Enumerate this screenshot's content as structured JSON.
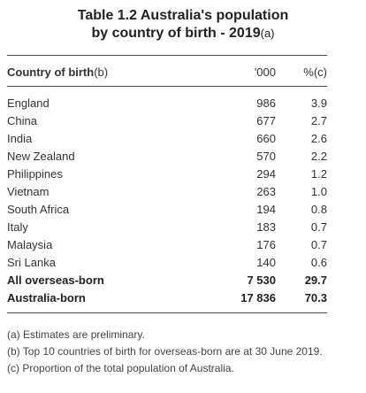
{
  "title": {
    "line1": "Table 1.2 Australia's population",
    "line2": "by country of birth - 2019",
    "note_ref": "(a)"
  },
  "header": {
    "country": "Country of birth",
    "country_ref": "(b)",
    "thousands": "'000",
    "percent": "%(c)"
  },
  "rows": [
    {
      "name": "England",
      "value": "986",
      "pct": "3.9"
    },
    {
      "name": "China",
      "value": "677",
      "pct": "2.7"
    },
    {
      "name": "India",
      "value": "660",
      "pct": "2.6"
    },
    {
      "name": "New Zealand",
      "value": "570",
      "pct": "2.2"
    },
    {
      "name": "Philippines",
      "value": "294",
      "pct": "1.2"
    },
    {
      "name": "Vietnam",
      "value": "263",
      "pct": "1.0"
    },
    {
      "name": "South Africa",
      "value": "194",
      "pct": "0.8"
    },
    {
      "name": "Italy",
      "value": "183",
      "pct": "0.7"
    },
    {
      "name": "Malaysia",
      "value": "176",
      "pct": "0.7"
    },
    {
      "name": "Sri Lanka",
      "value": "140",
      "pct": "0.6"
    }
  ],
  "totals": [
    {
      "name": "All overseas-born",
      "value": "7 530",
      "pct": "29.7"
    },
    {
      "name": "Australia-born",
      "value": "17 836",
      "pct": "70.3"
    }
  ],
  "footnotes": [
    "(a) Estimates are preliminary.",
    "(b) Top 10 countries of birth for overseas-born are at 30 June 2019.",
    "(c) Proportion of the total population of Australia."
  ]
}
